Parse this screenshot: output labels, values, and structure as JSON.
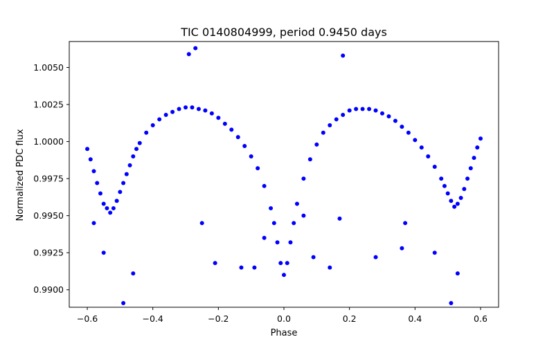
{
  "chart_data": {
    "type": "scatter",
    "title": "TIC 0140804999, period 0.9450 days",
    "xlabel": "Phase",
    "ylabel": "Normalized PDC flux",
    "xlim": [
      -0.655,
      0.655
    ],
    "ylim": [
      0.98882,
      1.00675
    ],
    "grid": false,
    "marker_color": "#0000ff",
    "x_ticks": [
      {
        "value": -0.6,
        "label": "−0.6"
      },
      {
        "value": -0.4,
        "label": "−0.4"
      },
      {
        "value": -0.2,
        "label": "−0.2"
      },
      {
        "value": 0.0,
        "label": "0.0"
      },
      {
        "value": 0.2,
        "label": "0.2"
      },
      {
        "value": 0.4,
        "label": "0.4"
      },
      {
        "value": 0.6,
        "label": "0.6"
      }
    ],
    "y_ticks": [
      {
        "value": 0.99,
        "label": "0.9900"
      },
      {
        "value": 0.9925,
        "label": "0.9925"
      },
      {
        "value": 0.995,
        "label": "0.9950"
      },
      {
        "value": 0.9975,
        "label": "0.9975"
      },
      {
        "value": 1.0,
        "label": "1.0000"
      },
      {
        "value": 1.0025,
        "label": "1.0025"
      },
      {
        "value": 1.005,
        "label": "1.0050"
      }
    ],
    "series": [
      {
        "points": [
          [
            -0.6,
            0.9995
          ],
          [
            -0.59,
            0.9988
          ],
          [
            -0.58,
            0.998
          ],
          [
            -0.57,
            0.9972
          ],
          [
            -0.56,
            0.9965
          ],
          [
            -0.55,
            0.9958
          ],
          [
            -0.54,
            0.9955
          ],
          [
            -0.53,
            0.9952
          ],
          [
            -0.52,
            0.9955
          ],
          [
            -0.51,
            0.996
          ],
          [
            -0.5,
            0.9966
          ],
          [
            -0.49,
            0.9972
          ],
          [
            -0.48,
            0.9978
          ],
          [
            -0.47,
            0.9984
          ],
          [
            -0.46,
            0.999
          ],
          [
            -0.45,
            0.9995
          ],
          [
            -0.44,
            0.9999
          ],
          [
            -0.42,
            1.0006
          ],
          [
            -0.4,
            1.0011
          ],
          [
            -0.38,
            1.0015
          ],
          [
            -0.36,
            1.0018
          ],
          [
            -0.34,
            1.002
          ],
          [
            -0.32,
            1.0022
          ],
          [
            -0.3,
            1.0023
          ],
          [
            -0.28,
            1.0023
          ],
          [
            -0.26,
            1.0022
          ],
          [
            -0.24,
            1.0021
          ],
          [
            -0.22,
            1.0019
          ],
          [
            -0.2,
            1.0016
          ],
          [
            -0.18,
            1.0012
          ],
          [
            -0.16,
            1.0008
          ],
          [
            -0.14,
            1.0003
          ],
          [
            -0.12,
            0.9997
          ],
          [
            -0.1,
            0.999
          ],
          [
            -0.08,
            0.9982
          ],
          [
            -0.06,
            0.997
          ],
          [
            -0.04,
            0.9955
          ],
          [
            -0.03,
            0.9945
          ],
          [
            -0.02,
            0.9932
          ],
          [
            -0.01,
            0.9918
          ],
          [
            0.0,
            0.991
          ],
          [
            0.01,
            0.9918
          ],
          [
            0.02,
            0.9932
          ],
          [
            0.03,
            0.9945
          ],
          [
            0.04,
            0.9958
          ],
          [
            0.06,
            0.9975
          ],
          [
            0.08,
            0.9988
          ],
          [
            0.1,
            0.9998
          ],
          [
            0.12,
            1.0006
          ],
          [
            0.14,
            1.0011
          ],
          [
            0.16,
            1.0015
          ],
          [
            0.18,
            1.0018
          ],
          [
            0.2,
            1.0021
          ],
          [
            0.22,
            1.0022
          ],
          [
            0.24,
            1.0022
          ],
          [
            0.26,
            1.0022
          ],
          [
            0.28,
            1.0021
          ],
          [
            0.3,
            1.0019
          ],
          [
            0.32,
            1.0017
          ],
          [
            0.34,
            1.0014
          ],
          [
            0.36,
            1.001
          ],
          [
            0.38,
            1.0006
          ],
          [
            0.4,
            1.0001
          ],
          [
            0.42,
            0.9996
          ],
          [
            0.44,
            0.999
          ],
          [
            0.46,
            0.9983
          ],
          [
            0.48,
            0.9975
          ],
          [
            0.49,
            0.997
          ],
          [
            0.5,
            0.9965
          ],
          [
            0.51,
            0.996
          ],
          [
            0.52,
            0.9956
          ],
          [
            0.53,
            0.9958
          ],
          [
            0.54,
            0.9962
          ],
          [
            0.55,
            0.9968
          ],
          [
            0.56,
            0.9975
          ],
          [
            0.57,
            0.9982
          ],
          [
            0.58,
            0.9989
          ],
          [
            0.59,
            0.9996
          ],
          [
            0.6,
            1.0002
          ],
          [
            -0.49,
            0.9891
          ],
          [
            0.51,
            0.9891
          ],
          [
            -0.27,
            1.0063
          ],
          [
            -0.29,
            1.0059
          ],
          [
            0.18,
            1.0058
          ],
          [
            -0.55,
            0.9925
          ],
          [
            0.46,
            0.9925
          ],
          [
            -0.46,
            0.9911
          ],
          [
            0.53,
            0.9911
          ],
          [
            -0.21,
            0.9918
          ],
          [
            0.14,
            0.9915
          ],
          [
            0.09,
            0.9922
          ],
          [
            -0.13,
            0.9915
          ],
          [
            0.28,
            0.9922
          ],
          [
            -0.58,
            0.9945
          ],
          [
            -0.25,
            0.9945
          ],
          [
            0.17,
            0.9948
          ],
          [
            0.37,
            0.9945
          ],
          [
            -0.06,
            0.9935
          ],
          [
            0.06,
            0.995
          ],
          [
            -0.09,
            0.9915
          ],
          [
            0.36,
            0.9928
          ]
        ]
      }
    ]
  }
}
